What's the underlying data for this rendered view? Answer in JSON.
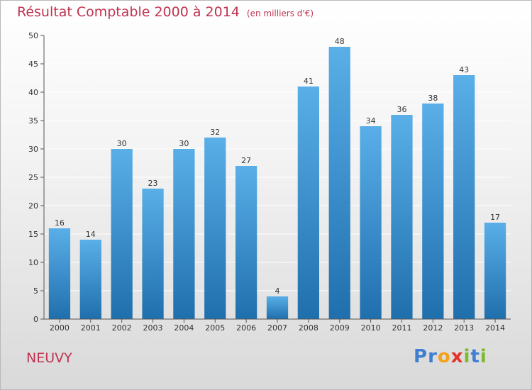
{
  "title": "Résultat Comptable 2000 à 2014",
  "subtitle": "(en milliers d'€)",
  "commune": "NEUVY",
  "logo": {
    "text": "Proxiti",
    "letters": [
      "P",
      "r",
      "o",
      "x",
      "i",
      "t",
      "i"
    ],
    "colors": [
      "#3f7fd1",
      "#3f7fd1",
      "#f3a21a",
      "#e2342b",
      "#7bbb2c",
      "#3f7fd1",
      "#7bbb2c"
    ]
  },
  "colors": {
    "bar_top": "#5aafe8",
    "bar_bottom": "#1f6fad",
    "grid": "#ffffff",
    "title": "#c0334f"
  },
  "chart_data": {
    "type": "bar",
    "title": "Résultat Comptable 2000 à 2014",
    "xlabel": "",
    "ylabel": "",
    "ylim": [
      0,
      50
    ],
    "yticks": [
      0,
      5,
      10,
      15,
      20,
      25,
      30,
      35,
      40,
      45,
      50
    ],
    "grid": true,
    "categories": [
      "2000",
      "2001",
      "2002",
      "2003",
      "2004",
      "2005",
      "2006",
      "2007",
      "2008",
      "2009",
      "2010",
      "2011",
      "2012",
      "2013",
      "2014"
    ],
    "values": [
      16,
      14,
      30,
      23,
      30,
      32,
      27,
      4,
      41,
      48,
      34,
      36,
      38,
      43,
      17
    ]
  }
}
